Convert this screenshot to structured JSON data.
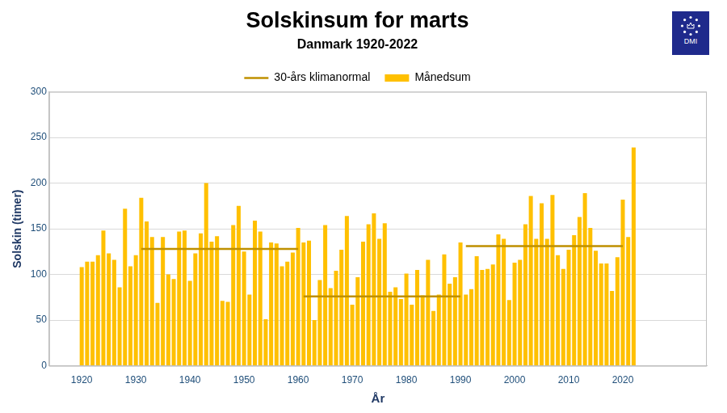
{
  "chart_data": {
    "type": "bar",
    "title": "Solskinsum for marts",
    "subtitle": "Danmark 1920-2022",
    "logo_text": "DMI",
    "x_label": "År",
    "y_label": "Solskin (timer)",
    "xlim": [
      1919.5,
      2030
    ],
    "xticks": [
      1920,
      1930,
      1940,
      1950,
      1960,
      1970,
      1980,
      1990,
      2000,
      2010,
      2020
    ],
    "ylim": [
      0,
      300
    ],
    "yticks": [
      0,
      50,
      100,
      150,
      200,
      250,
      300
    ],
    "grid": true,
    "legend": "top",
    "series": [
      {
        "name": "Månedsum",
        "type": "bar",
        "color": "#ffc000",
        "x": [
          1920,
          1921,
          1922,
          1923,
          1924,
          1925,
          1926,
          1927,
          1928,
          1929,
          1930,
          1931,
          1932,
          1933,
          1934,
          1935,
          1936,
          1937,
          1938,
          1939,
          1940,
          1941,
          1942,
          1943,
          1944,
          1945,
          1946,
          1947,
          1948,
          1949,
          1950,
          1951,
          1952,
          1953,
          1954,
          1955,
          1956,
          1957,
          1958,
          1959,
          1960,
          1961,
          1962,
          1963,
          1964,
          1965,
          1966,
          1967,
          1968,
          1969,
          1970,
          1971,
          1972,
          1973,
          1974,
          1975,
          1976,
          1977,
          1978,
          1979,
          1980,
          1981,
          1982,
          1983,
          1984,
          1985,
          1986,
          1987,
          1988,
          1989,
          1990,
          1991,
          1992,
          1993,
          1994,
          1995,
          1996,
          1997,
          1998,
          1999,
          2000,
          2001,
          2002,
          2003,
          2004,
          2005,
          2006,
          2007,
          2008,
          2009,
          2010,
          2011,
          2012,
          2013,
          2014,
          2015,
          2016,
          2017,
          2018,
          2019,
          2020,
          2021,
          2022
        ],
        "values": [
          108,
          114,
          114,
          121,
          148,
          123,
          116,
          86,
          172,
          109,
          121,
          184,
          158,
          141,
          69,
          141,
          100,
          95,
          147,
          148,
          93,
          123,
          145,
          200,
          136,
          142,
          71,
          70,
          154,
          175,
          125,
          78,
          159,
          147,
          51,
          135,
          134,
          109,
          114,
          124,
          151,
          135,
          137,
          50,
          94,
          154,
          85,
          104,
          127,
          164,
          67,
          97,
          136,
          155,
          167,
          139,
          156,
          81,
          86,
          73,
          101,
          67,
          105,
          77,
          116,
          60,
          78,
          122,
          90,
          97,
          135,
          78,
          84,
          120,
          105,
          106,
          111,
          144,
          139,
          72,
          113,
          116,
          155,
          186,
          139,
          178,
          139,
          187,
          121,
          106,
          127,
          143,
          163,
          189,
          151,
          126,
          112,
          112,
          82,
          119,
          182,
          141,
          239
        ]
      },
      {
        "name": "30-års klimanormal",
        "type": "line",
        "color": "#bf9000",
        "x": [
          1931,
          1960,
          1961,
          1961,
          1990,
          1991,
          1991,
          2020
        ],
        "values": [
          128,
          128,
          null,
          76,
          76,
          null,
          131,
          131
        ]
      }
    ]
  }
}
